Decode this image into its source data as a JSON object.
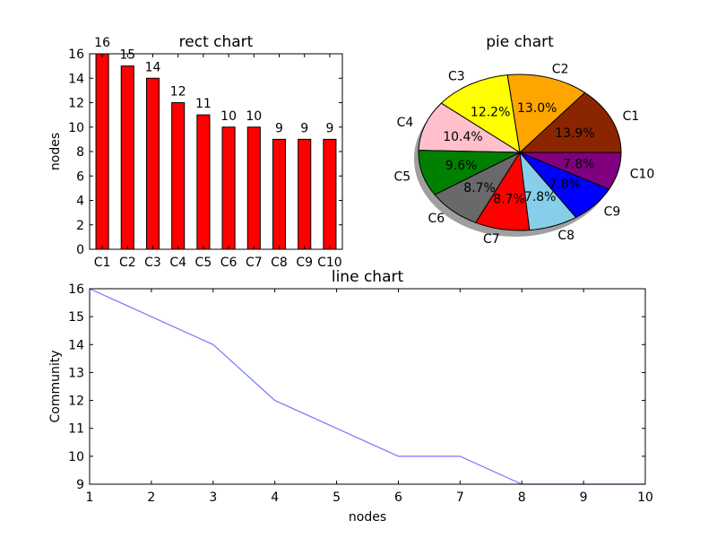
{
  "chart_data": [
    {
      "type": "bar",
      "title": "rect chart",
      "xlabel": "",
      "ylabel": "nodes",
      "categories": [
        "C1",
        "C2",
        "C3",
        "C4",
        "C5",
        "C6",
        "C7",
        "C8",
        "C9",
        "C10"
      ],
      "values": [
        16,
        15,
        14,
        12,
        11,
        10,
        10,
        9,
        9,
        9
      ],
      "ylim": [
        0,
        16
      ],
      "yticks": [
        0,
        2,
        4,
        6,
        8,
        10,
        12,
        14,
        16
      ],
      "bar_color": "#ff0000",
      "grid": false
    },
    {
      "type": "pie",
      "title": "pie chart",
      "labels": [
        "C1",
        "C2",
        "C3",
        "C4",
        "C5",
        "C6",
        "C7",
        "C8",
        "C9",
        "C10"
      ],
      "values": [
        16,
        15,
        14,
        12,
        11,
        10,
        10,
        9,
        9,
        9
      ],
      "percent_labels": [
        "13.9%",
        "13.0%",
        "12.2%",
        "10.4%",
        "9.6%",
        "8.7%",
        "8.7%",
        "7.8%",
        "7.8%",
        "7.8%"
      ],
      "colors": [
        "#8b2500",
        "#ffa500",
        "#ffff00",
        "#ffc0cb",
        "#008000",
        "#696969",
        "#ff0000",
        "#87ceeb",
        "#0000ff",
        "#800080"
      ],
      "shadow": true
    },
    {
      "type": "line",
      "title": "line chart",
      "xlabel": "nodes",
      "ylabel": "Community",
      "x": [
        1,
        2,
        3,
        4,
        5,
        6,
        7,
        8,
        9,
        10
      ],
      "y": [
        16,
        15,
        14,
        12,
        11,
        10,
        10,
        9,
        9,
        9
      ],
      "xlim": [
        1,
        10
      ],
      "ylim": [
        9,
        16
      ],
      "xticks": [
        1,
        2,
        3,
        4,
        5,
        6,
        7,
        8,
        9,
        10
      ],
      "yticks": [
        9,
        10,
        11,
        12,
        13,
        14,
        15,
        16
      ],
      "line_color": "#7777ff",
      "grid": false
    }
  ]
}
